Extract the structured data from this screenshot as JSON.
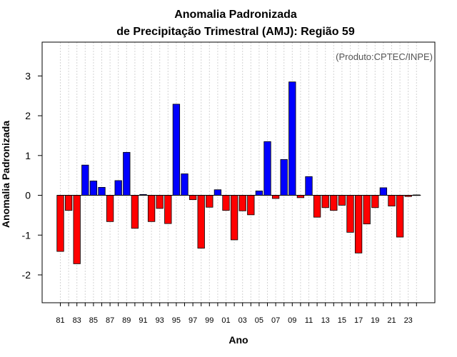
{
  "chart_data": {
    "type": "bar",
    "title": "Anomalia Padronizada",
    "subtitle": "de Precipitação Trimestral (AMJ): Região 59",
    "xlabel": "Ano",
    "ylabel": "Anomalia Padronizada",
    "annotation": "(Produto:CPTEC/INPE)",
    "ylim": [
      -2.7,
      3.85
    ],
    "yticks": [
      -2,
      -1,
      0,
      1,
      2,
      3
    ],
    "grid": "vertical dashed",
    "positive_color": "#0000ff",
    "negative_color": "#ff0000",
    "categories": [
      "81",
      "82",
      "83",
      "84",
      "85",
      "86",
      "87",
      "88",
      "89",
      "90",
      "91",
      "92",
      "93",
      "94",
      "95",
      "96",
      "97",
      "98",
      "99",
      "00",
      "01",
      "02",
      "03",
      "04",
      "05",
      "06",
      "07",
      "08",
      "09",
      "10",
      "11",
      "12",
      "13",
      "14",
      "15",
      "16",
      "17",
      "18",
      "19",
      "20",
      "21",
      "22",
      "23",
      "24"
    ],
    "category_labels": [
      "81",
      "",
      "83",
      "",
      "85",
      "",
      "87",
      "",
      "89",
      "",
      "91",
      "",
      "93",
      "",
      "95",
      "",
      "97",
      "",
      "99",
      "",
      "01",
      "",
      "03",
      "",
      "05",
      "",
      "07",
      "",
      "09",
      "",
      "11",
      "",
      "13",
      "",
      "15",
      "",
      "17",
      "",
      "19",
      "",
      "21",
      "",
      "23",
      ""
    ],
    "values": [
      -1.41,
      -0.38,
      -1.72,
      0.76,
      0.36,
      0.2,
      -0.66,
      0.37,
      1.08,
      -0.83,
      0.02,
      -0.66,
      -0.33,
      -0.71,
      2.29,
      0.54,
      -0.11,
      -1.33,
      -0.3,
      0.14,
      -0.38,
      -1.12,
      -0.39,
      -0.49,
      0.11,
      1.35,
      -0.08,
      0.9,
      2.85,
      -0.06,
      0.47,
      -0.55,
      -0.31,
      -0.38,
      -0.25,
      -0.93,
      -1.45,
      -0.72,
      -0.31,
      0.19,
      -0.27,
      -1.05,
      -0.03,
      0.01
    ]
  }
}
